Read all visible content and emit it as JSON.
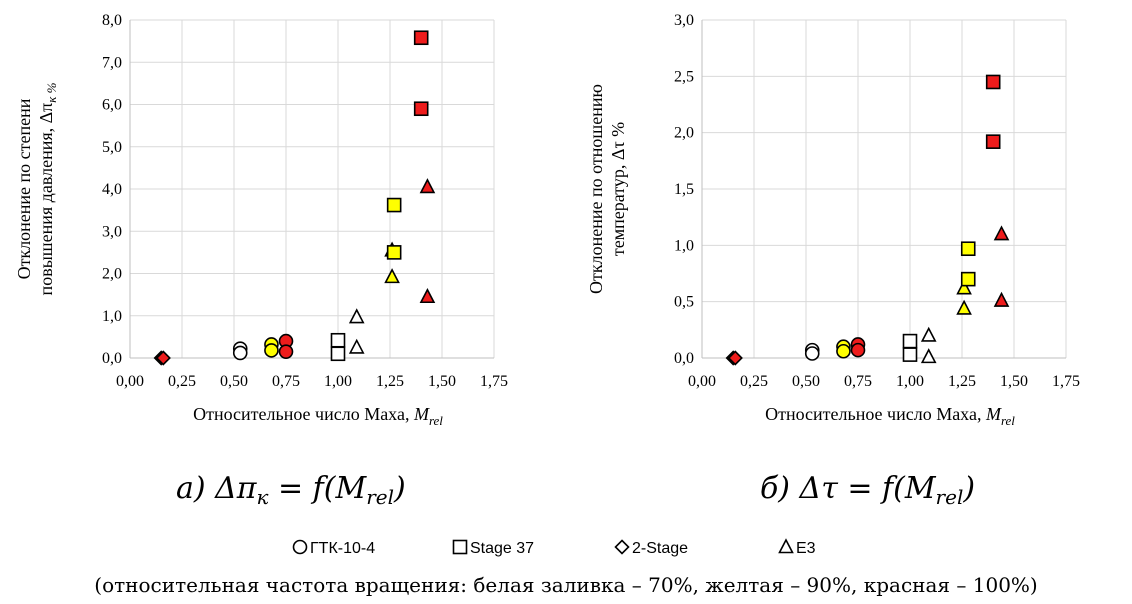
{
  "colors": {
    "white": "#ffffff",
    "yellow": "#ffff00",
    "red": "#ee1c1c",
    "grid": "#d9d9d9"
  },
  "chart_data": [
    {
      "type": "scatter",
      "xlabel_main": "Относительное число Маха, ",
      "xlabel_sym": "M",
      "xlabel_sub": "rel",
      "ylabel_line1": "Отклонение по степени",
      "ylabel_line2": "повышения давления, Δπ",
      "ylabel_sub": "к %",
      "xlim": [
        0,
        1.75
      ],
      "ylim": [
        0,
        8
      ],
      "xticks": [
        "0,00",
        "0,25",
        "0,50",
        "0,75",
        "1,00",
        "1,25",
        "1,50",
        "1,75"
      ],
      "xtick_values": [
        0,
        0.25,
        0.5,
        0.75,
        1.0,
        1.25,
        1.5,
        1.75
      ],
      "yticks": [
        "0,0",
        "1,0",
        "2,0",
        "3,0",
        "4,0",
        "5,0",
        "6,0",
        "7,0",
        "8,0"
      ],
      "ytick_values": [
        0,
        1,
        2,
        3,
        4,
        5,
        6,
        7,
        8
      ],
      "grid": true,
      "caption": "а) Δπ",
      "caption_sub": "к",
      "caption_rest": " = f(M",
      "caption_rest_sub": "rel",
      "caption_end": ")",
      "points": [
        {
          "series": "2-Stage",
          "fill": "yellow",
          "x": 0.15,
          "y": 0.0
        },
        {
          "series": "2-Stage",
          "fill": "red",
          "x": 0.16,
          "y": 0.0
        },
        {
          "series": "ГТК-10-4",
          "fill": "white",
          "x": 0.53,
          "y": 0.22
        },
        {
          "series": "ГТК-10-4",
          "fill": "white",
          "x": 0.53,
          "y": 0.12
        },
        {
          "series": "ГТК-10-4",
          "fill": "yellow",
          "x": 0.68,
          "y": 0.32
        },
        {
          "series": "ГТК-10-4",
          "fill": "yellow",
          "x": 0.68,
          "y": 0.18
        },
        {
          "series": "ГТК-10-4",
          "fill": "red",
          "x": 0.75,
          "y": 0.4
        },
        {
          "series": "ГТК-10-4",
          "fill": "red",
          "x": 0.75,
          "y": 0.15
        },
        {
          "series": "Stage 37",
          "fill": "white",
          "x": 1.0,
          "y": 0.42
        },
        {
          "series": "Stage 37",
          "fill": "white",
          "x": 1.0,
          "y": 0.1
        },
        {
          "series": "E3",
          "fill": "white",
          "x": 1.09,
          "y": 0.97
        },
        {
          "series": "E3",
          "fill": "white",
          "x": 1.09,
          "y": 0.25
        },
        {
          "series": "E3",
          "fill": "yellow",
          "x": 1.26,
          "y": 2.55
        },
        {
          "series": "E3",
          "fill": "yellow",
          "x": 1.26,
          "y": 1.92
        },
        {
          "series": "Stage 37",
          "fill": "yellow",
          "x": 1.27,
          "y": 3.62
        },
        {
          "series": "Stage 37",
          "fill": "yellow",
          "x": 1.27,
          "y": 2.5
        },
        {
          "series": "Stage 37",
          "fill": "red",
          "x": 1.4,
          "y": 7.58
        },
        {
          "series": "Stage 37",
          "fill": "red",
          "x": 1.4,
          "y": 5.9
        },
        {
          "series": "E3",
          "fill": "red",
          "x": 1.43,
          "y": 4.05
        },
        {
          "series": "E3",
          "fill": "red",
          "x": 1.43,
          "y": 1.45
        }
      ]
    },
    {
      "type": "scatter",
      "xlabel_main": "Относительное число Маха, ",
      "xlabel_sym": "M",
      "xlabel_sub": "rel",
      "ylabel_line1": "Отклонение по отношению",
      "ylabel_line2": "температур, Δτ %",
      "ylabel_sub": "",
      "xlim": [
        0,
        1.75
      ],
      "ylim": [
        0,
        3
      ],
      "xticks": [
        "0,00",
        "0,25",
        "0,50",
        "0,75",
        "1,00",
        "1,25",
        "1,50",
        "1,75"
      ],
      "xtick_values": [
        0,
        0.25,
        0.5,
        0.75,
        1.0,
        1.25,
        1.5,
        1.75
      ],
      "yticks": [
        "0,0",
        "0,5",
        "1,0",
        "1,5",
        "2,0",
        "2,5",
        "3,0"
      ],
      "ytick_values": [
        0,
        0.5,
        1.0,
        1.5,
        2.0,
        2.5,
        3.0
      ],
      "grid": true,
      "caption": "б) Δτ",
      "caption_sub": "",
      "caption_rest": " = f(M",
      "caption_rest_sub": "rel",
      "caption_end": ")",
      "points": [
        {
          "series": "2-Stage",
          "fill": "yellow",
          "x": 0.15,
          "y": 0.0
        },
        {
          "series": "2-Stage",
          "fill": "red",
          "x": 0.16,
          "y": 0.0
        },
        {
          "series": "ГТК-10-4",
          "fill": "white",
          "x": 0.53,
          "y": 0.07
        },
        {
          "series": "ГТК-10-4",
          "fill": "white",
          "x": 0.53,
          "y": 0.04
        },
        {
          "series": "ГТК-10-4",
          "fill": "yellow",
          "x": 0.68,
          "y": 0.1
        },
        {
          "series": "ГТК-10-4",
          "fill": "yellow",
          "x": 0.68,
          "y": 0.06
        },
        {
          "series": "ГТК-10-4",
          "fill": "red",
          "x": 0.75,
          "y": 0.12
        },
        {
          "series": "ГТК-10-4",
          "fill": "red",
          "x": 0.75,
          "y": 0.07
        },
        {
          "series": "Stage 37",
          "fill": "white",
          "x": 1.0,
          "y": 0.15
        },
        {
          "series": "Stage 37",
          "fill": "white",
          "x": 1.0,
          "y": 0.03
        },
        {
          "series": "E3",
          "fill": "white",
          "x": 1.09,
          "y": 0.2
        },
        {
          "series": "E3",
          "fill": "white",
          "x": 1.09,
          "y": 0.01
        },
        {
          "series": "E3",
          "fill": "yellow",
          "x": 1.26,
          "y": 0.62
        },
        {
          "series": "E3",
          "fill": "yellow",
          "x": 1.26,
          "y": 0.44
        },
        {
          "series": "Stage 37",
          "fill": "yellow",
          "x": 1.28,
          "y": 0.97
        },
        {
          "series": "Stage 37",
          "fill": "yellow",
          "x": 1.28,
          "y": 0.7
        },
        {
          "series": "Stage 37",
          "fill": "red",
          "x": 1.4,
          "y": 2.45
        },
        {
          "series": "Stage 37",
          "fill": "red",
          "x": 1.4,
          "y": 1.92
        },
        {
          "series": "E3",
          "fill": "red",
          "x": 1.44,
          "y": 1.1
        },
        {
          "series": "E3",
          "fill": "red",
          "x": 1.44,
          "y": 0.51
        }
      ]
    }
  ],
  "legend": [
    {
      "marker": "circle",
      "label": "ГТК-10-4"
    },
    {
      "marker": "square",
      "label": "Stage 37"
    },
    {
      "marker": "diamond",
      "label": "2-Stage"
    },
    {
      "marker": "triangle",
      "label": "E3"
    }
  ],
  "note": "(относительная частота вращения: белая заливка – 70%, желтая – 90%, красная – 100%)"
}
